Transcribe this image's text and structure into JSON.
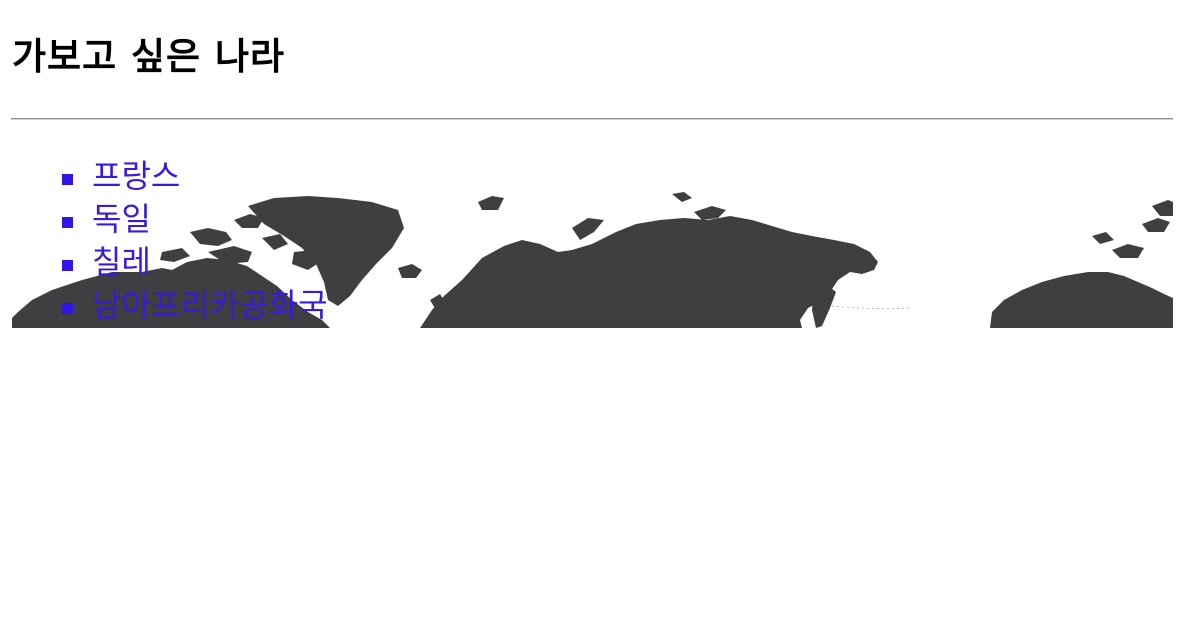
{
  "page": {
    "title": "가보고 싶은 나라"
  },
  "map": {
    "icon": "world-map-icon",
    "land_color": "#3f3e41"
  },
  "countries": [
    {
      "label": "프랑스"
    },
    {
      "label": "독일"
    },
    {
      "label": "칠레"
    },
    {
      "label": "남아프리카공화국"
    }
  ],
  "colors": {
    "link": "#3a1ae0",
    "bullet": "#3015e6",
    "heading": "#000000"
  }
}
